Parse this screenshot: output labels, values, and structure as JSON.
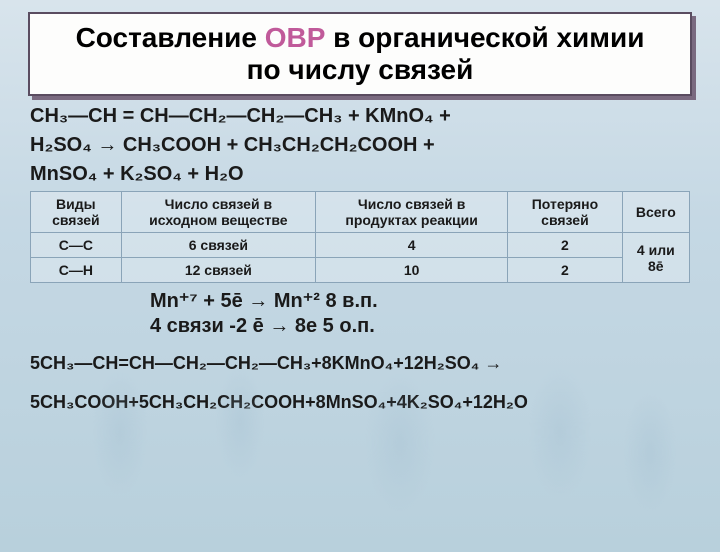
{
  "title": {
    "line1_pre": "Составление ",
    "line1_accent": "ОВР",
    "line1_post": " в органической химии",
    "line2": "по числу связей",
    "border_color": "#5a4c60",
    "shadow_color": "#7a6a80",
    "bg_color": "#fdfdfc",
    "accent_color": "#c05a9a",
    "font_size": 28
  },
  "equation1": {
    "l1": "CH₃—CH = CH—CH₂—CH₂—CH₃ + KMnO₄ +",
    "l2": "H₂SO₄ → CH₃COOH + CH₃CH₂CH₂COOH +",
    "l3": "MnSO₄ + K₂SO₄ + H₂O"
  },
  "table": {
    "headers": [
      "Виды связей",
      "Число связей в исходном веществе",
      "Число связей в продуктах реакции",
      "Потеряно связей",
      "Всего"
    ],
    "rows": [
      [
        "C—C",
        "6 связей",
        "4",
        "2"
      ],
      [
        "C—H",
        "12 связей",
        "10",
        "2"
      ]
    ],
    "merged_total": "4 или 8ē",
    "border_color": "#8aa4b8",
    "font_size": 14
  },
  "half": {
    "l1": "Mn⁺⁷ + 5ē → Mn⁺²      8   в.п.",
    "l2": "4 связи -2 ē → 8e      5   о.п."
  },
  "final": {
    "l1": "5CH₃—CH=CH—CH₂—CH₂—CH₃+8KMnO₄+12H₂SO₄ →",
    "l2": "5CH₃COOH+5CH₃CH₂CH₂COOH+8MnSO₄+4K₂SO₄+12H₂O"
  },
  "colors": {
    "page_bg_top": "#d8e4ec",
    "page_bg_bottom": "#b8d0dc",
    "text": "#1a1a1a"
  }
}
